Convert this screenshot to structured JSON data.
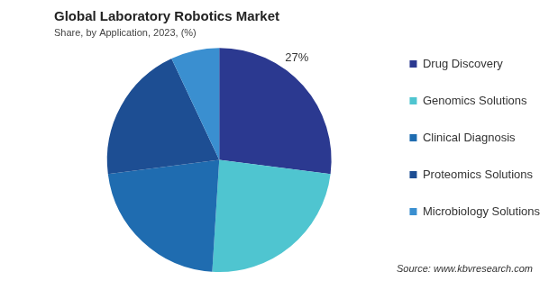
{
  "chart_data": {
    "type": "pie",
    "title": "Global Laboratory Robotics Market",
    "subtitle": "Share, by Application, 2023, (%)",
    "source": "Source: www.kbvresearch.com",
    "categories": [
      "Drug Discovery",
      "Genomics Solutions",
      "Clinical Diagnosis",
      "Proteomics Solutions",
      "Microbiology Solutions"
    ],
    "values": [
      27,
      24,
      22,
      20,
      7
    ],
    "value_labels": [
      "27%",
      null,
      null,
      null,
      null
    ],
    "colors": [
      "#2b3990",
      "#4fc5d0",
      "#1f6cb0",
      "#1d4e93",
      "#3a8fd0"
    ],
    "data_labels": true,
    "legend": "right"
  }
}
